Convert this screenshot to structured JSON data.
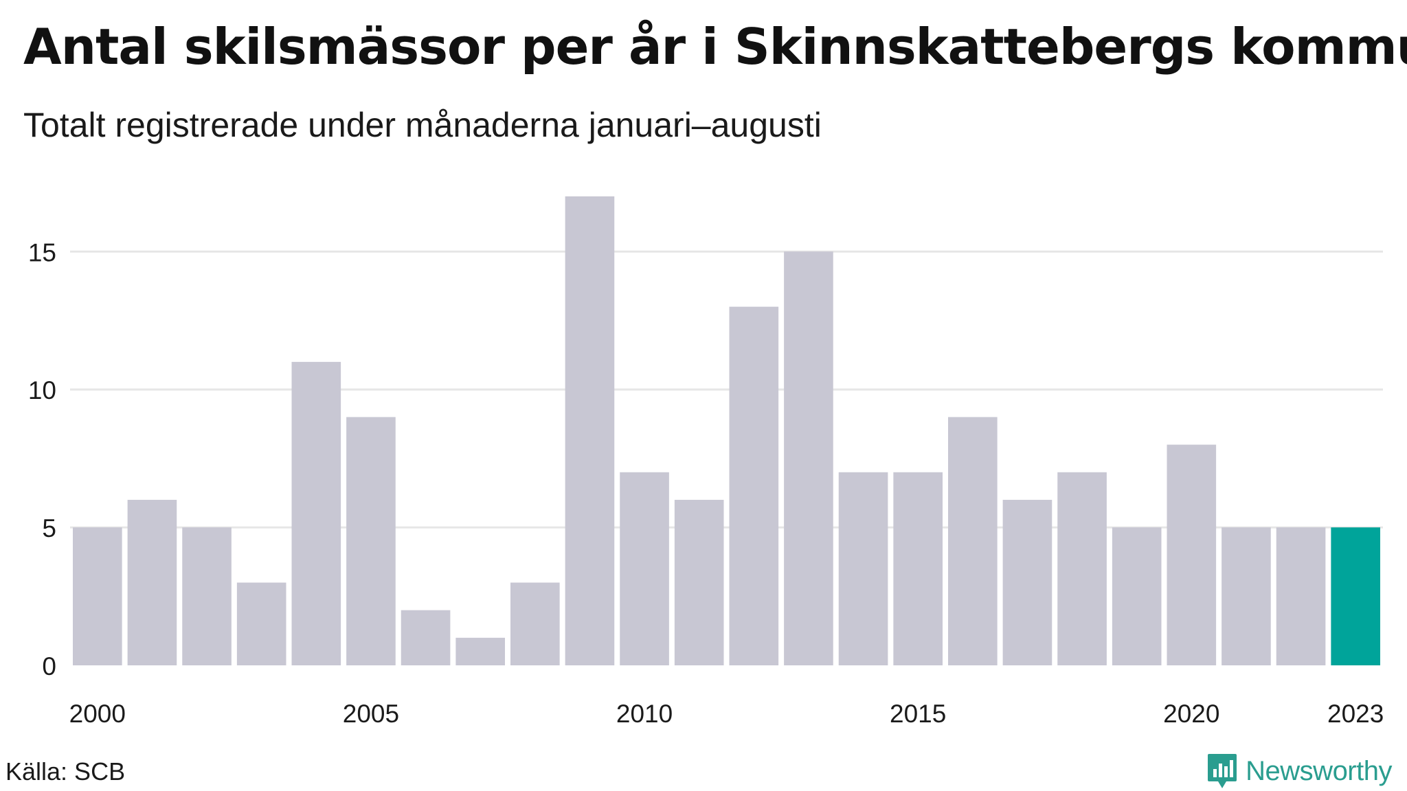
{
  "title": "Antal skilsmässor per år i Skinnskattebergs kommun",
  "subtitle": "Totalt registrerade under månaderna januari–augusti",
  "source": "Källa: SCB",
  "brand": {
    "name": "Newsworthy",
    "logo_icon": "newsworthy-logo-icon"
  },
  "colors": {
    "bar": "#c8c7d3",
    "highlight": "#00a49a",
    "grid": "#e6e6e6",
    "brand": "#2a9d8f"
  },
  "chart_data": {
    "type": "bar",
    "title": "Antal skilsmässor per år i Skinnskattebergs kommun",
    "subtitle": "Totalt registrerade under månaderna januari–augusti",
    "categories": [
      2000,
      2001,
      2002,
      2003,
      2004,
      2005,
      2006,
      2007,
      2008,
      2009,
      2010,
      2011,
      2012,
      2013,
      2014,
      2015,
      2016,
      2017,
      2018,
      2019,
      2020,
      2021,
      2022,
      2023
    ],
    "values": [
      5,
      6,
      5,
      3,
      11,
      9,
      2,
      1,
      3,
      17,
      7,
      6,
      13,
      15,
      7,
      7,
      9,
      6,
      7,
      5,
      8,
      5,
      5,
      5
    ],
    "highlight_category": 2023,
    "x_tick_labels": [
      "2000",
      "2005",
      "2010",
      "2015",
      "2020",
      "2023"
    ],
    "y_ticks": [
      0,
      5,
      10,
      15
    ],
    "ylim": [
      0,
      17
    ],
    "xlabel": "",
    "ylabel": "",
    "grid": "horizontal",
    "legend": "none"
  }
}
